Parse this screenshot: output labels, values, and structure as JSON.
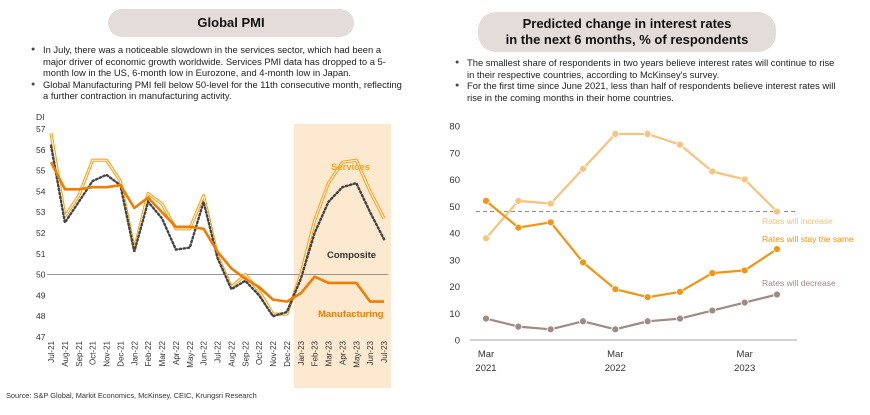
{
  "left": {
    "title": "Global PMI",
    "notes": [
      "In July, there was a noticeable slowdown in the services sector, which had been a major driver of economic growth worldwide. Services PMI data has dropped to a 5-month low in the US, 6-month low in Eurozone, and 4-month low in Japan.",
      "Global Manufacturing PMI fell below 50-level for the 11th consecutive month, reflecting a further contraction in manufacturing activity."
    ]
  },
  "right": {
    "title_line1": "Predicted change in interest rates",
    "title_line2": "in the next 6 months, % of respondents",
    "notes": [
      "The smallest share of respondents in two years believe interest rates will continue to rise in their respective countries, according to McKinsey's survey.",
      "For the first time since June 2021, less than half of respondents believe interest rates will rise in the coming months in their home countries."
    ]
  },
  "source": "Source: S&P Global, Markit Economics, McKinsey, CEIC, Krungsri Research",
  "colors": {
    "services": "#f5a623",
    "manufacturing": "#f07d00",
    "composite": "#444444",
    "increase": "#f9c27d",
    "stay_same": "#f5940f",
    "decrease": "#a08a85",
    "highlight": "#fde9cf",
    "pill": "#e3dcd9"
  },
  "chart_data": [
    {
      "type": "line",
      "ylabel": "DI",
      "ylim": [
        47,
        57
      ],
      "yticks": [
        47,
        48,
        49,
        50,
        51,
        52,
        53,
        54,
        55,
        56,
        57
      ],
      "reference_line": 50,
      "highlight_range": [
        "Jan-23",
        "Jul-23"
      ],
      "categories": [
        "Jul-21",
        "Aug-21",
        "Sep-21",
        "Oct-21",
        "Nov-21",
        "Dec-21",
        "Jan-22",
        "Feb-22",
        "Mar-22",
        "Apr-22",
        "May-22",
        "Jun-22",
        "Jul-22",
        "Aug-22",
        "Sep-22",
        "Oct-22",
        "Nov-22",
        "Dec-22",
        "Jan-23",
        "Feb-23",
        "Mar-23",
        "Apr-23",
        "May-23",
        "Jun-23",
        "Jul-23"
      ],
      "series": [
        {
          "name": "Services",
          "values": [
            56.8,
            52.8,
            53.8,
            55.5,
            55.5,
            54.5,
            51.2,
            53.9,
            53.4,
            52.2,
            52.2,
            53.8,
            50.9,
            49.4,
            50.0,
            49.2,
            48.1,
            48.1,
            50.0,
            52.6,
            54.4,
            55.4,
            55.5,
            54.0,
            52.7
          ]
        },
        {
          "name": "Manufacturing",
          "values": [
            55.4,
            54.1,
            54.1,
            54.2,
            54.2,
            54.3,
            53.2,
            53.7,
            53.0,
            52.3,
            52.3,
            52.2,
            51.1,
            50.3,
            49.8,
            49.4,
            48.8,
            48.7,
            49.1,
            49.9,
            49.6,
            49.6,
            49.6,
            48.7,
            48.7
          ]
        },
        {
          "name": "Composite",
          "values": [
            56.2,
            52.5,
            53.5,
            54.5,
            54.8,
            54.3,
            51.1,
            53.5,
            52.7,
            51.2,
            51.3,
            53.5,
            50.8,
            49.3,
            49.7,
            49.0,
            48.0,
            48.2,
            49.8,
            52.0,
            53.5,
            54.2,
            54.4,
            53.0,
            51.7
          ]
        }
      ],
      "series_labels": {
        "services": "Services",
        "composite": "Composite",
        "manufacturing": "Manufacturing"
      }
    },
    {
      "type": "line",
      "ylim": [
        0,
        80
      ],
      "yticks": [
        0,
        10,
        20,
        30,
        40,
        50,
        60,
        70,
        80
      ],
      "x_tick_labels": [
        [
          "Mar",
          "2021"
        ],
        [
          "Mar",
          "2022"
        ],
        [
          "Mar",
          "2023"
        ]
      ],
      "x_tick_positions": [
        0,
        4,
        8
      ],
      "reference_line": 48,
      "series": [
        {
          "name": "Rates will increase",
          "values": [
            38,
            52,
            51,
            64,
            77,
            77,
            73,
            63,
            60,
            48
          ]
        },
        {
          "name": "Rates will stay the same",
          "values": [
            52,
            42,
            44,
            29,
            19,
            16,
            18,
            25,
            26,
            34
          ]
        },
        {
          "name": "Rates will decrease",
          "values": [
            8,
            5,
            4,
            7,
            4,
            7,
            8,
            11,
            14,
            17
          ]
        }
      ]
    }
  ]
}
